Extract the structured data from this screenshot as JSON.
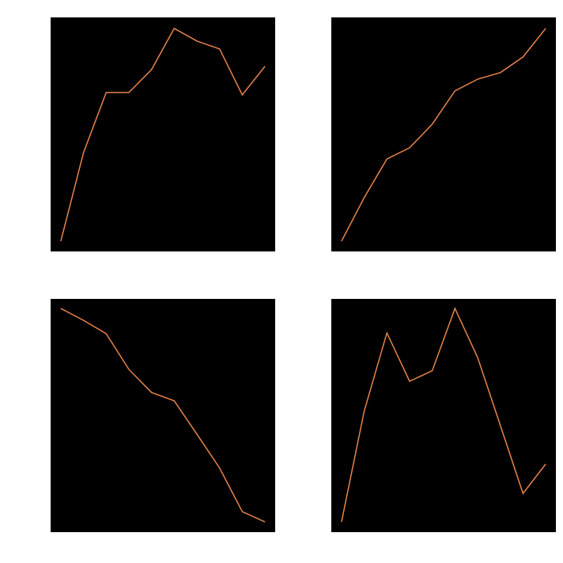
{
  "chart_data": [
    {
      "type": "line",
      "facecolor": "#000000",
      "x": [
        0,
        1,
        2,
        3,
        4,
        5,
        6,
        7,
        8,
        9
      ],
      "xlim": [
        -0.45,
        9.45
      ],
      "ylim": [
        0,
        100
      ],
      "series": [
        {
          "color": "#e8844a",
          "values": [
            4.4,
            42.2,
            67.9,
            67.9,
            77.7,
            95.3,
            89.9,
            86.5,
            66.9,
            79.1
          ]
        }
      ]
    },
    {
      "type": "line",
      "facecolor": "#000000",
      "x": [
        0,
        1,
        2,
        3,
        4,
        5,
        6,
        7,
        8,
        9
      ],
      "xlim": [
        -0.45,
        9.45
      ],
      "ylim": [
        0,
        100
      ],
      "series": [
        {
          "color": "#e8844a",
          "values": [
            4.4,
            23.0,
            39.5,
            44.3,
            54.4,
            68.6,
            73.6,
            76.4,
            83.1,
            95.3
          ]
        }
      ]
    },
    {
      "type": "line",
      "facecolor": "#000000",
      "x": [
        0,
        1,
        2,
        3,
        4,
        5,
        6,
        7,
        8,
        9
      ],
      "xlim": [
        -0.45,
        9.45
      ],
      "ylim": [
        0,
        100
      ],
      "series": [
        {
          "color": "#e8844a",
          "values": [
            95.9,
            90.8,
            85.1,
            69.8,
            59.9,
            56.3,
            42.0,
            27.5,
            8.8,
            4.4
          ]
        }
      ]
    },
    {
      "type": "line",
      "facecolor": "#000000",
      "x": [
        0,
        1,
        2,
        3,
        4,
        5,
        6,
        7,
        8,
        9
      ],
      "xlim": [
        -0.45,
        9.45
      ],
      "ylim": [
        0,
        100
      ],
      "series": [
        {
          "color": "#e8844a",
          "values": [
            4.4,
            51.9,
            85.4,
            64.7,
            69.2,
            95.9,
            74.9,
            45.8,
            16.6,
            29.2
          ]
        }
      ]
    }
  ]
}
